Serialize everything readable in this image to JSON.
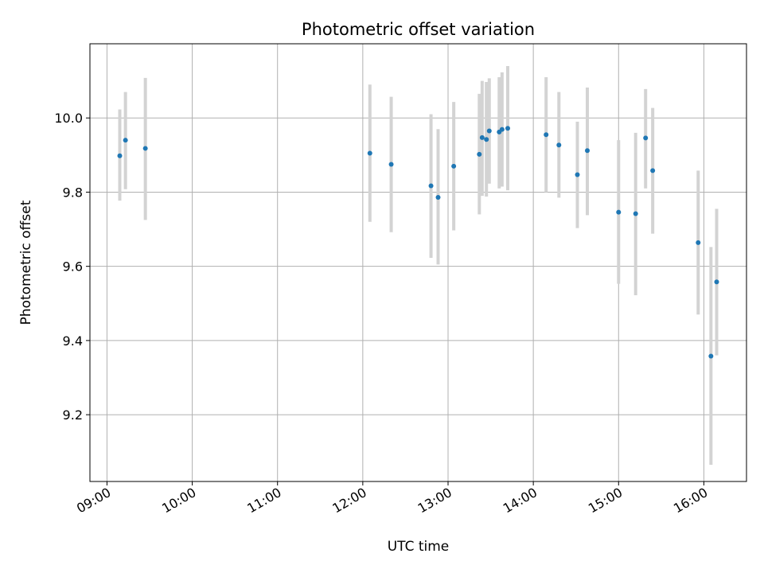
{
  "chart_data": {
    "type": "scatter",
    "title": "Photometric offset variation",
    "xlabel": "UTC time",
    "ylabel": "Photometric offset",
    "x_axis_type": "time",
    "xlim": [
      "08:48",
      "16:30"
    ],
    "ylim": [
      9.02,
      10.2
    ],
    "xticks": [
      "09:00",
      "10:00",
      "11:00",
      "12:00",
      "13:00",
      "14:00",
      "15:00",
      "16:00"
    ],
    "yticks": [
      9.2,
      9.4,
      9.6,
      9.8,
      10.0
    ],
    "ytick_labels": [
      "9.2",
      "9.4",
      "9.6",
      "9.8",
      "10.0"
    ],
    "grid": true,
    "legend": "none",
    "marker_color": "#1f77b4",
    "errorbar_color": "#d3d3d3",
    "series": [
      {
        "points": [
          {
            "x": "09:09",
            "y": 9.898,
            "ylow": 9.777,
            "yhigh": 10.023
          },
          {
            "x": "09:13",
            "y": 9.94,
            "ylow": 9.808,
            "yhigh": 10.07
          },
          {
            "x": "09:27",
            "y": 9.918,
            "ylow": 9.725,
            "yhigh": 10.108
          },
          {
            "x": "12:05",
            "y": 9.905,
            "ylow": 9.72,
            "yhigh": 10.09
          },
          {
            "x": "12:20",
            "y": 9.875,
            "ylow": 9.692,
            "yhigh": 10.057
          },
          {
            "x": "12:48",
            "y": 9.817,
            "ylow": 9.623,
            "yhigh": 10.01
          },
          {
            "x": "12:53",
            "y": 9.786,
            "ylow": 9.605,
            "yhigh": 9.97
          },
          {
            "x": "13:04",
            "y": 9.87,
            "ylow": 9.697,
            "yhigh": 10.043
          },
          {
            "x": "13:22",
            "y": 9.902,
            "ylow": 9.74,
            "yhigh": 10.065
          },
          {
            "x": "13:24",
            "y": 9.947,
            "ylow": 9.79,
            "yhigh": 10.1
          },
          {
            "x": "13:27",
            "y": 9.942,
            "ylow": 9.788,
            "yhigh": 10.097
          },
          {
            "x": "13:29",
            "y": 9.965,
            "ylow": 9.823,
            "yhigh": 10.107
          },
          {
            "x": "13:36",
            "y": 9.962,
            "ylow": 9.81,
            "yhigh": 10.11
          },
          {
            "x": "13:38",
            "y": 9.969,
            "ylow": 9.815,
            "yhigh": 10.123
          },
          {
            "x": "13:42",
            "y": 9.972,
            "ylow": 9.805,
            "yhigh": 10.14
          },
          {
            "x": "14:09",
            "y": 9.955,
            "ylow": 9.8,
            "yhigh": 10.11
          },
          {
            "x": "14:18",
            "y": 9.927,
            "ylow": 9.785,
            "yhigh": 10.07
          },
          {
            "x": "14:31",
            "y": 9.847,
            "ylow": 9.703,
            "yhigh": 9.99
          },
          {
            "x": "14:38",
            "y": 9.912,
            "ylow": 9.738,
            "yhigh": 10.082
          },
          {
            "x": "15:00",
            "y": 9.746,
            "ylow": 9.553,
            "yhigh": 9.94
          },
          {
            "x": "15:12",
            "y": 9.742,
            "ylow": 9.522,
            "yhigh": 9.96
          },
          {
            "x": "15:19",
            "y": 9.946,
            "ylow": 9.81,
            "yhigh": 10.078
          },
          {
            "x": "15:24",
            "y": 9.858,
            "ylow": 9.688,
            "yhigh": 10.027
          },
          {
            "x": "15:56",
            "y": 9.664,
            "ylow": 9.47,
            "yhigh": 9.858
          },
          {
            "x": "16:05",
            "y": 9.358,
            "ylow": 9.065,
            "yhigh": 9.652
          },
          {
            "x": "16:09",
            "y": 9.558,
            "ylow": 9.36,
            "yhigh": 9.755
          }
        ]
      }
    ]
  }
}
